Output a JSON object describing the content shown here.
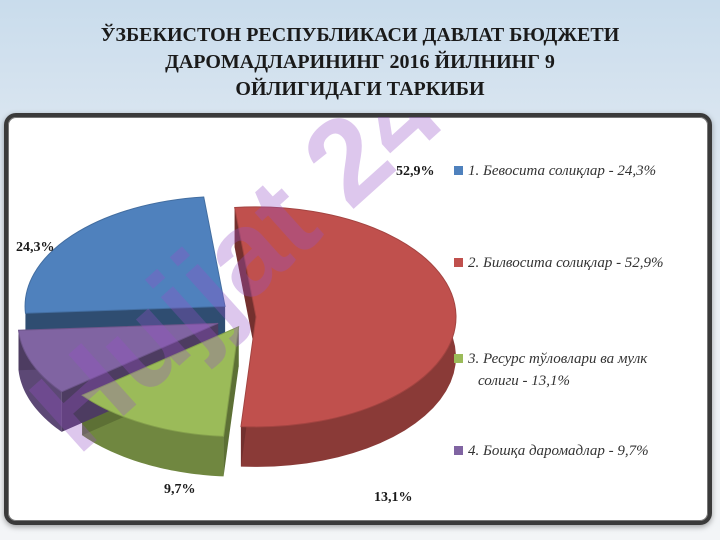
{
  "title_lines": [
    "ЎЗБЕКИСТОН РЕСПУБЛИКАСИ ДАВЛАТ БЮДЖЕТИ",
    "ДАРОМАДЛАРИНИНГ 2016 ЙИЛНИНГ 9",
    "ОЙЛИГИДАГИ ТАРКИБИ"
  ],
  "watermark": "Hujjat 24",
  "chart_data": {
    "type": "pie",
    "slices": [
      {
        "value": 24.3,
        "label": "24,3%",
        "legend_lines": [
          "1. Бевосита солиқлар - 24,3%"
        ],
        "color": "#4f81bd"
      },
      {
        "value": 52.9,
        "label": "52,9%",
        "legend_lines": [
          "2. Билвосита солиқлар - 52,9%"
        ],
        "color": "#c0504d"
      },
      {
        "value": 13.1,
        "label": "13,1%",
        "legend_lines": [
          "3. Ресурс тўловлари ва мулк",
          "солиги - 13,1%"
        ],
        "color": "#9bbb59"
      },
      {
        "value": 9.7,
        "label": "9,7%",
        "legend_lines": [
          "4. Бошқа даромадлар - 9,7%"
        ],
        "color": "#8064a2"
      }
    ],
    "legend_position": "right",
    "style": "3d-exploded"
  }
}
